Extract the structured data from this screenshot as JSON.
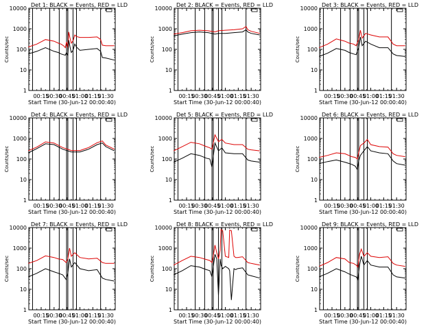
{
  "chart_data": {
    "type": "line",
    "ylabel": "Counts/sec",
    "xlabel": "Start Time (30-Jun-12 00:00:40)",
    "x_ticks": [
      "00:15",
      "00:30",
      "00:45",
      "01:00",
      "01:15",
      "01:30"
    ],
    "x_range_minutes": [
      0.67,
      101
    ],
    "y_ticks": [
      "1",
      "10",
      "100",
      "1000",
      "10000"
    ],
    "y_scale": "log",
    "ylim": [
      1,
      10000
    ],
    "series_colors": {
      "events": "#000000",
      "lld": "#dd0000"
    },
    "vertical_markers_minutes": [
      5,
      25,
      36,
      44.5,
      46,
      52,
      56,
      84
    ],
    "panels": [
      {
        "title": "Det 1: BLACK = Events, RED = LLD",
        "x": [
          0,
          10,
          20,
          30,
          35,
          38,
          41,
          43,
          44.5,
          46,
          47,
          48.5,
          50,
          52,
          54,
          56,
          60,
          70,
          80,
          84,
          86,
          90,
          100
        ],
        "events": [
          60,
          80,
          120,
          80,
          70,
          60,
          55,
          52,
          70,
          50,
          280,
          130,
          70,
          90,
          180,
          130,
          90,
          100,
          110,
          80,
          40,
          38,
          30
        ],
        "lld": [
          130,
          180,
          300,
          250,
          200,
          180,
          150,
          120,
          230,
          120,
          700,
          350,
          200,
          260,
          500,
          420,
          380,
          380,
          400,
          300,
          160,
          150,
          150
        ]
      },
      {
        "title": "Det 2: BLACK = Events, RED = LLD",
        "x": [
          0,
          10,
          20,
          30,
          40,
          48,
          52,
          60,
          70,
          80,
          84,
          86,
          90,
          100
        ],
        "events": [
          450,
          550,
          650,
          700,
          650,
          550,
          600,
          600,
          650,
          700,
          900,
          700,
          600,
          500
        ],
        "lld": [
          550,
          650,
          800,
          850,
          800,
          700,
          800,
          850,
          900,
          1000,
          1300,
          900,
          750,
          600
        ]
      },
      {
        "title": "Det 3: BLACK = Events, RED = LLD",
        "x": [
          0,
          10,
          20,
          30,
          35,
          40,
          43,
          46,
          48,
          50,
          54,
          60,
          70,
          80,
          86,
          90,
          100
        ],
        "events": [
          45,
          65,
          110,
          90,
          70,
          60,
          55,
          120,
          400,
          150,
          250,
          180,
          120,
          120,
          60,
          50,
          45
        ],
        "lld": [
          120,
          180,
          320,
          250,
          200,
          180,
          150,
          300,
          850,
          350,
          600,
          500,
          400,
          400,
          180,
          150,
          150
        ]
      },
      {
        "title": "Det 4: BLACK = Events, RED = LLD",
        "x": [
          0,
          10,
          20,
          30,
          40,
          50,
          60,
          70,
          80,
          86,
          90,
          100
        ],
        "events": [
          200,
          320,
          550,
          500,
          300,
          220,
          220,
          300,
          500,
          600,
          400,
          250
        ],
        "lld": [
          250,
          380,
          680,
          600,
          360,
          260,
          260,
          360,
          620,
          750,
          480,
          300
        ]
      },
      {
        "title": "Det 5: BLACK = Events, RED = LLD",
        "x": [
          0,
          10,
          20,
          30,
          38,
          42,
          44.5,
          46,
          48,
          52,
          56,
          60,
          70,
          80,
          86,
          90,
          100
        ],
        "events": [
          70,
          110,
          180,
          150,
          110,
          100,
          40,
          130,
          600,
          250,
          350,
          200,
          180,
          180,
          90,
          80,
          70
        ],
        "lld": [
          250,
          400,
          650,
          550,
          400,
          350,
          300,
          600,
          1500,
          700,
          900,
          600,
          500,
          500,
          300,
          280,
          250
        ]
      },
      {
        "title": "Det 6: BLACK = Events, RED = LLD",
        "x": [
          0,
          10,
          20,
          30,
          38,
          42,
          44.5,
          46,
          48,
          52,
          56,
          60,
          70,
          80,
          86,
          90,
          100
        ],
        "events": [
          60,
          75,
          90,
          70,
          55,
          45,
          30,
          80,
          150,
          250,
          400,
          250,
          200,
          180,
          80,
          60,
          50
        ],
        "lld": [
          120,
          150,
          200,
          180,
          130,
          120,
          100,
          200,
          450,
          600,
          900,
          500,
          400,
          380,
          180,
          150,
          130
        ]
      },
      {
        "title": "Det 7: BLACK = Events, RED = LLD",
        "x": [
          0,
          10,
          20,
          30,
          35,
          40,
          44,
          46,
          48,
          50,
          54,
          60,
          70,
          80,
          86,
          90,
          100
        ],
        "events": [
          40,
          60,
          100,
          70,
          60,
          50,
          30,
          60,
          300,
          120,
          200,
          100,
          80,
          90,
          35,
          30,
          25
        ],
        "lld": [
          180,
          250,
          420,
          350,
          300,
          280,
          200,
          300,
          1000,
          400,
          600,
          350,
          300,
          320,
          200,
          180,
          180
        ]
      },
      {
        "title": "Det 8: BLACK = Events, RED = LLD",
        "x": [
          0,
          10,
          20,
          30,
          38,
          42,
          44.5,
          46,
          48,
          50,
          52,
          54,
          55,
          57,
          60,
          64,
          65,
          67,
          70,
          72,
          74,
          80,
          86,
          90,
          100
        ],
        "events": [
          50,
          80,
          140,
          120,
          90,
          80,
          40,
          120,
          500,
          300,
          5,
          300,
          150,
          100,
          130,
          100,
          80,
          3,
          100,
          90,
          100,
          110,
          50,
          45,
          35
        ],
        "lld": [
          150,
          250,
          400,
          350,
          280,
          250,
          200,
          400,
          1400,
          600,
          300,
          800,
          8000,
          7000,
          400,
          350,
          7500,
          7000,
          400,
          350,
          350,
          380,
          200,
          180,
          150
        ]
      },
      {
        "title": "Det 9: BLACK = Events, RED = LLD",
        "x": [
          0,
          10,
          20,
          30,
          35,
          40,
          43,
          45,
          47,
          49,
          52,
          56,
          60,
          70,
          80,
          86,
          90,
          100
        ],
        "events": [
          40,
          60,
          100,
          70,
          55,
          45,
          40,
          30,
          150,
          400,
          150,
          250,
          150,
          120,
          120,
          50,
          40,
          35
        ],
        "lld": [
          130,
          200,
          350,
          300,
          200,
          180,
          150,
          120,
          500,
          900,
          400,
          600,
          400,
          350,
          380,
          180,
          150,
          130
        ]
      }
    ]
  }
}
